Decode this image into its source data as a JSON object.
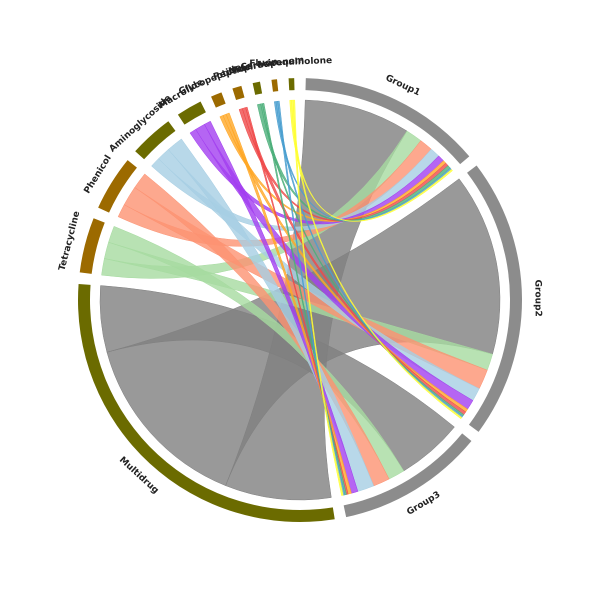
{
  "chart_data": {
    "type": "chord",
    "columns": [
      {
        "name": "Group1",
        "color": "#8c8c8c"
      },
      {
        "name": "Group2",
        "color": "#8c8c8c"
      },
      {
        "name": "Group3",
        "color": "#8c8c8c"
      }
    ],
    "rows": [
      {
        "name": "Multidrug",
        "color": "#6b6b00",
        "chord_color": "#7f7f7f"
      },
      {
        "name": "Tetracycline",
        "color": "#9c6a00",
        "chord_color": "#a6dba0"
      },
      {
        "name": "Phenicol",
        "color": "#9c6a00",
        "chord_color": "#fc9272"
      },
      {
        "name": "Aminoglycoside",
        "color": "#6b6b00",
        "chord_color": "#a6cee3"
      },
      {
        "name": "Macrolide",
        "color": "#6b6b00",
        "chord_color": "#a23ef0"
      },
      {
        "name": "Glycopeptide",
        "color": "#9c6a00",
        "chord_color": "#ffa726"
      },
      {
        "name": "Peptide",
        "color": "#9c6a00",
        "chord_color": "#ef4a4a"
      },
      {
        "name": "Mupirocin",
        "color": "#6b6b00",
        "chord_color": "#4caf7a"
      },
      {
        "name": "Carbapenem",
        "color": "#9c6a00",
        "chord_color": "#4a9fd0"
      },
      {
        "name": "Fluoroquinolone",
        "color": "#6b6b00",
        "chord_color": "#ffff33"
      }
    ],
    "values": [
      [
        32,
        55,
        20
      ],
      [
        5,
        5,
        5
      ],
      [
        4,
        6,
        5
      ],
      [
        3,
        4,
        5
      ],
      [
        2,
        3,
        2
      ],
      [
        1,
        1,
        1
      ],
      [
        1,
        1,
        0.5
      ],
      [
        1,
        0.5,
        0.5
      ],
      [
        0.5,
        0.5,
        0.5
      ],
      [
        0.5,
        0.5,
        0.5
      ]
    ]
  }
}
